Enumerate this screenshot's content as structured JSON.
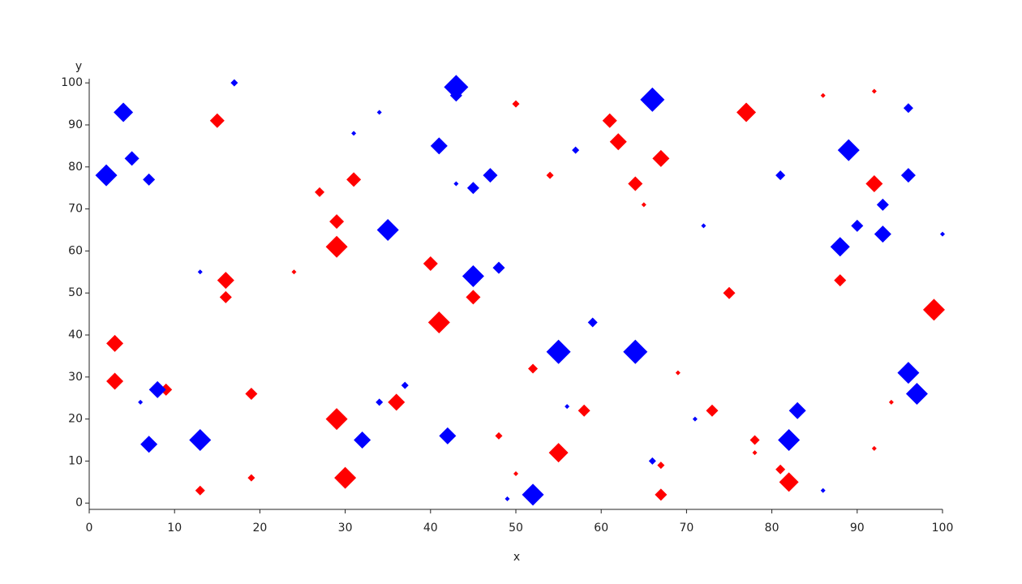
{
  "chart_data": {
    "type": "scatter",
    "x_label": "x",
    "y_label": "y",
    "xlim": [
      0,
      100
    ],
    "ylim": [
      -1.5,
      101
    ],
    "xticks": [
      0,
      10,
      20,
      30,
      40,
      50,
      60,
      70,
      80,
      90,
      100
    ],
    "yticks": [
      0,
      10,
      20,
      30,
      40,
      50,
      60,
      70,
      80,
      90,
      100
    ],
    "series": [
      {
        "color": "#ff0000",
        "x": [
          15,
          29,
          29,
          31,
          27,
          16,
          16,
          24,
          3,
          3,
          9,
          19,
          13,
          19,
          29,
          30,
          36,
          40,
          41,
          45,
          50,
          48,
          50,
          52,
          54,
          55,
          58,
          61,
          62,
          64,
          65,
          67,
          67,
          67,
          69,
          73,
          75,
          77,
          78,
          78,
          81,
          82,
          86,
          88,
          92,
          92,
          92,
          94,
          99
        ],
        "values": [
          91,
          67,
          61,
          77,
          74,
          53,
          49,
          55,
          38,
          29,
          27,
          26,
          3,
          6,
          20,
          6,
          24,
          57,
          43,
          49,
          95,
          16,
          7,
          32,
          78,
          12,
          22,
          91,
          86,
          76,
          71,
          82,
          9,
          2,
          31,
          22,
          50,
          93,
          15,
          12,
          8,
          5,
          97,
          53,
          98,
          76,
          13,
          24,
          46
        ],
        "sizes": [
          3,
          3,
          4.5,
          3,
          2,
          3.5,
          2.5,
          1,
          3.5,
          3.5,
          2.5,
          2.5,
          2,
          1.5,
          4.5,
          4.5,
          3.5,
          3,
          4.5,
          3,
          1.5,
          1.5,
          1,
          2,
          1.5,
          4,
          2.5,
          3,
          3.5,
          3,
          1,
          3.5,
          1.5,
          2.5,
          1,
          2.5,
          2.5,
          4,
          2,
          1,
          2,
          4,
          1,
          2.5,
          1,
          3.5,
          1,
          1,
          4.5
        ]
      },
      {
        "color": "#0000ff",
        "x": [
          2,
          4,
          5,
          7,
          6,
          8,
          7,
          13,
          13,
          17,
          31,
          34,
          35,
          32,
          34,
          37,
          41,
          43,
          43,
          43,
          45,
          47,
          45,
          48,
          42,
          49,
          52,
          55,
          56,
          57,
          59,
          64,
          66,
          66,
          71,
          72,
          81,
          82,
          83,
          86,
          89,
          88,
          90,
          93,
          93,
          96,
          96,
          96,
          97,
          100
        ],
        "values": [
          78,
          93,
          82,
          77,
          24,
          27,
          14,
          55,
          15,
          100,
          88,
          93,
          65,
          15,
          24,
          28,
          85,
          99,
          97,
          76,
          75,
          78,
          54,
          56,
          16,
          1,
          2,
          36,
          23,
          84,
          43,
          36,
          96,
          10,
          20,
          66,
          78,
          15,
          22,
          3,
          84,
          61,
          66,
          71,
          64,
          94,
          78,
          31,
          26,
          64
        ],
        "sizes": [
          4.5,
          4,
          3,
          2.5,
          1,
          3.5,
          3.5,
          1,
          4.5,
          1.5,
          1,
          1,
          4.5,
          3.5,
          1.5,
          1.5,
          3.5,
          5,
          2.5,
          1,
          2.5,
          3,
          4.5,
          2.5,
          3.5,
          1,
          4.5,
          5,
          1,
          1.5,
          2,
          5,
          5,
          1.5,
          1,
          1,
          2,
          4.5,
          3.5,
          1,
          4.5,
          4,
          2.5,
          2.5,
          3.5,
          2,
          3,
          4.5,
          4.5,
          1
        ]
      }
    ]
  }
}
